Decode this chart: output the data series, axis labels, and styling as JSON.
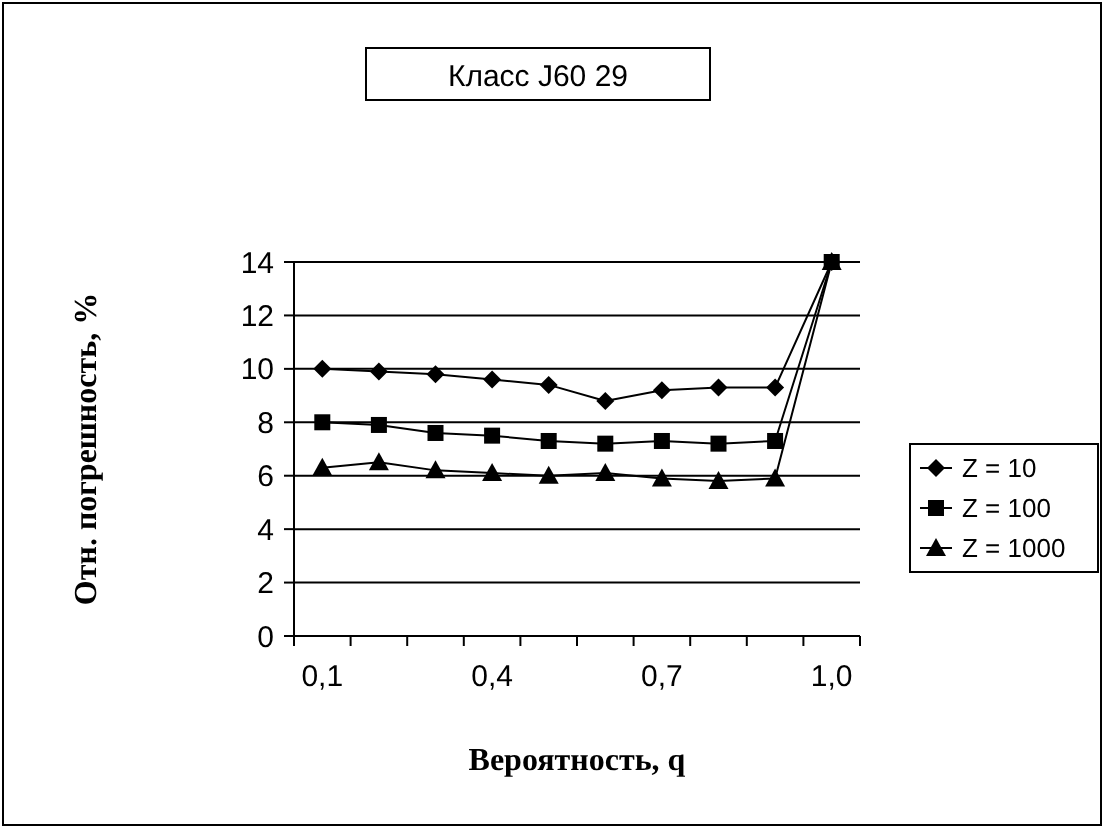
{
  "chart_data": {
    "type": "line",
    "title": "Класс J60 29",
    "xlabel": "Вероятность, q",
    "ylabel": "Отн. погрешность, %",
    "categories": [
      "0,1",
      null,
      null,
      "0,4",
      null,
      null,
      "0,7",
      null,
      null,
      "1,0"
    ],
    "series": [
      {
        "name": "Z = 10",
        "color": "#000000",
        "marker": "diamond",
        "values": [
          10,
          9.9,
          9.8,
          9.6,
          9.4,
          8.8,
          9.2,
          9.3,
          9.3,
          14
        ]
      },
      {
        "name": "Z = 100",
        "color": "#000000",
        "marker": "square",
        "values": [
          8.0,
          7.9,
          7.6,
          7.5,
          7.3,
          7.2,
          7.3,
          7.2,
          7.3,
          14
        ]
      },
      {
        "name": "Z = 1000",
        "color": "#000000",
        "marker": "triangle",
        "values": [
          6.3,
          6.5,
          6.2,
          6.1,
          6.0,
          6.1,
          5.9,
          5.8,
          5.9,
          14
        ]
      }
    ],
    "ylim": [
      0,
      14
    ],
    "yticks": [
      0,
      2,
      4,
      6,
      8,
      10,
      12,
      14
    ],
    "grid": "y",
    "legend": "right"
  }
}
